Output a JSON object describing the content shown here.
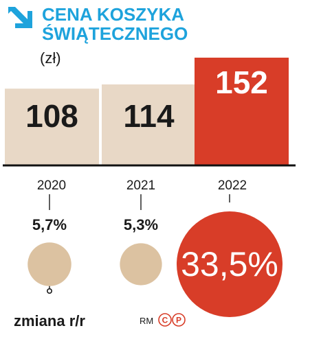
{
  "colors": {
    "accent_blue": "#1ea3dc",
    "bar_beige": "#e8d8c6",
    "circle_beige": "#dcc2a1",
    "highlight_red": "#d83d28",
    "text_dark": "#1a1a1a",
    "axis": "#111111",
    "white": "#ffffff"
  },
  "header": {
    "icon": "arrow-down-right-icon",
    "title_line1": "CENA KOSZYKA",
    "title_line2": "ŚWIĄTECZNEGO",
    "unit": "(zł)"
  },
  "chart_data": {
    "type": "bar",
    "categories": [
      "2020",
      "2021",
      "2022"
    ],
    "values": [
      108,
      114,
      152
    ],
    "data_labels": [
      "108",
      "114",
      "152"
    ],
    "highlight_index": 2,
    "title": "CENA KOSZYKA ŚWIĄTECZNEGO",
    "ylabel": "(zł)",
    "ylim": [
      0,
      152
    ],
    "grid": false,
    "yoy_change": {
      "label": "zmiana r/r",
      "values": [
        5.7,
        5.3,
        33.5
      ],
      "labels": [
        "5,7%",
        "5,3%",
        "33,5%"
      ]
    }
  },
  "credit": {
    "author": "RM",
    "mark_c": "C",
    "mark_p": "P"
  }
}
